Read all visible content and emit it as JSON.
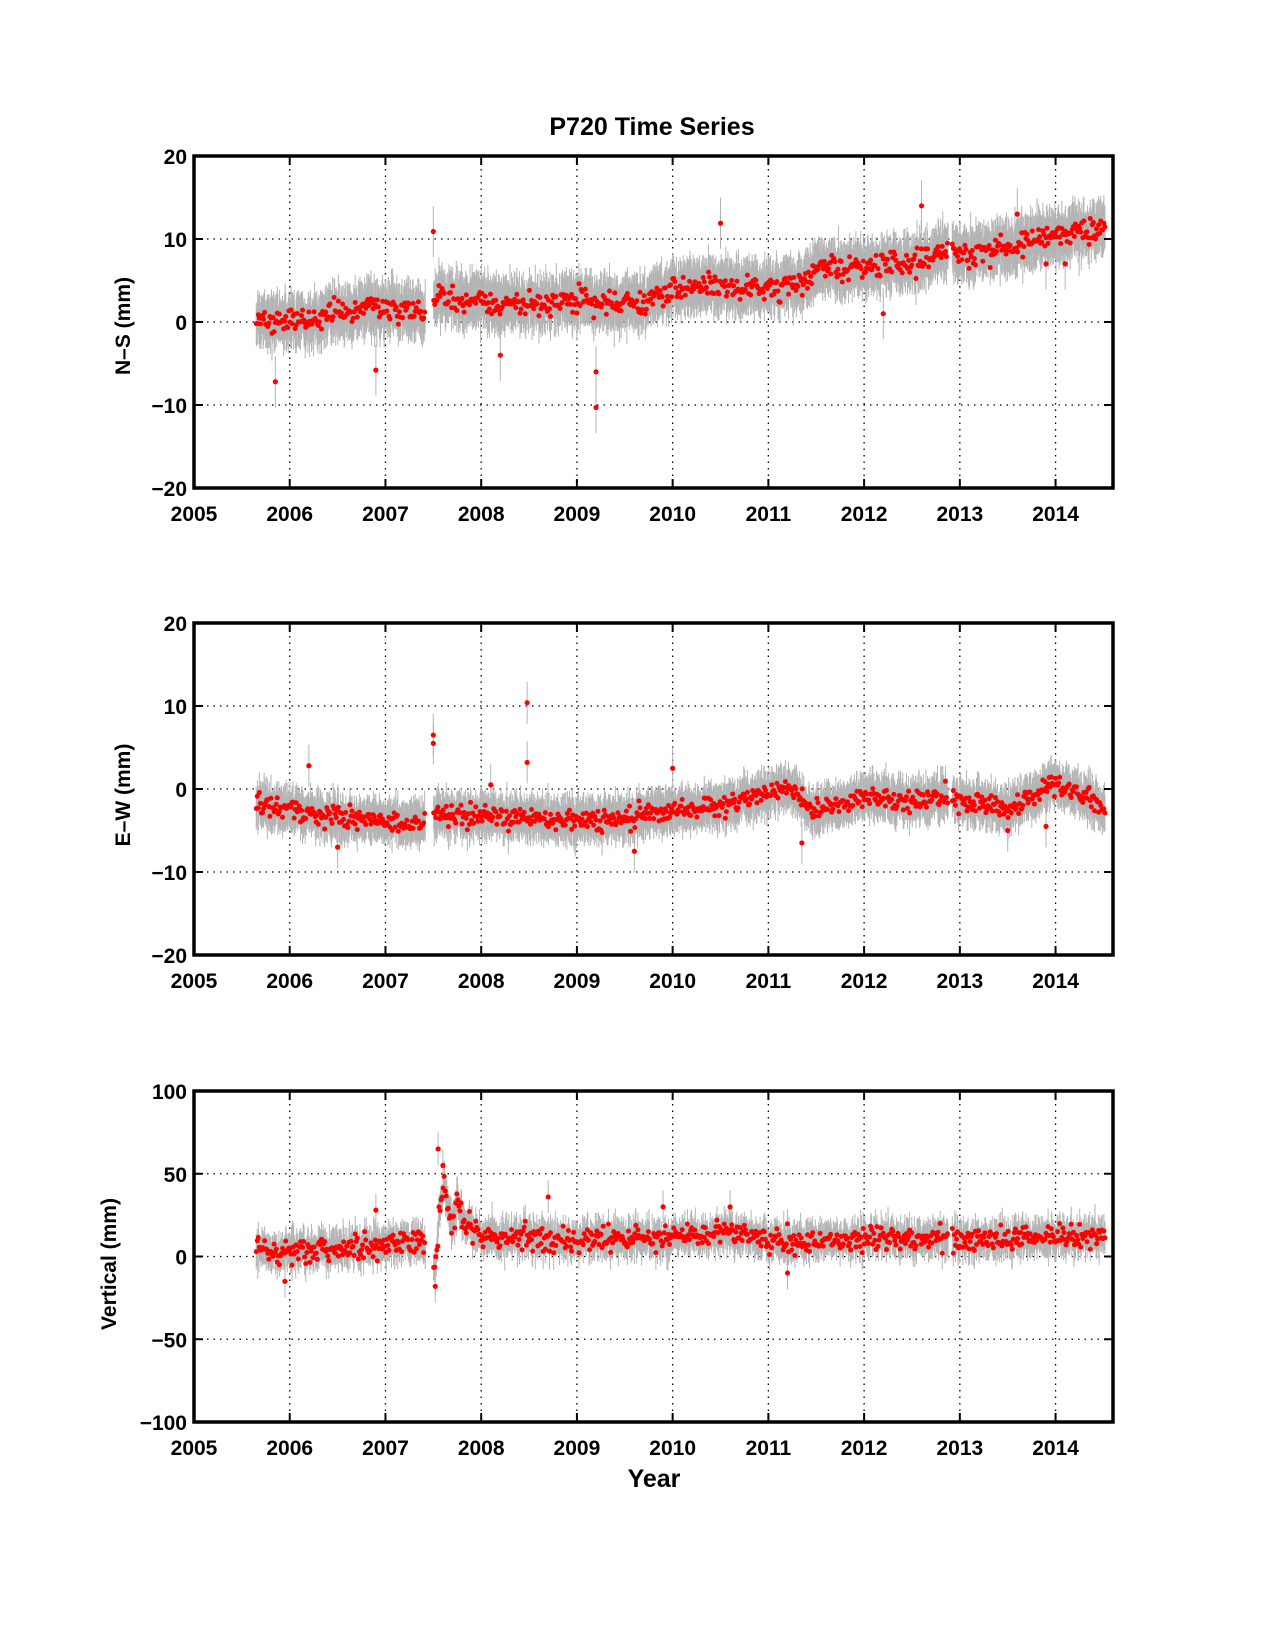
{
  "figure": {
    "title": "P720 Time Series",
    "xlabel": "Year"
  },
  "colors": {
    "point": "#ff0000",
    "error_bar": "#b4b4b4",
    "axes": "#000000",
    "grid": "#000000",
    "background": "#ffffff"
  },
  "chart_data": [
    {
      "type": "scatter",
      "panel": "north-south",
      "title": "P720 Time Series",
      "xlabel": "",
      "ylabel": "N–S (mm)",
      "xlim": [
        2005,
        2014.6
      ],
      "ylim": [
        -20,
        20
      ],
      "xticks": [
        2005,
        2006,
        2007,
        2008,
        2009,
        2010,
        2011,
        2012,
        2013,
        2014
      ],
      "xtick_labels": [
        "2005",
        "2006",
        "2007",
        "2008",
        "2009",
        "2010",
        "2011",
        "2012",
        "2013",
        "2014"
      ],
      "yticks": [
        -20,
        -10,
        0,
        10,
        20
      ],
      "ytick_labels": [
        "−20",
        "−10",
        "0",
        "10",
        "20"
      ],
      "grid": true,
      "error_bars": true,
      "data_span": [
        2005.65,
        2014.52
      ],
      "gaps": [
        [
          2007.42,
          2007.5
        ],
        [
          2012.88,
          2012.92
        ]
      ],
      "trend": [
        [
          2005.65,
          0.0
        ],
        [
          2006.0,
          0.2
        ],
        [
          2006.5,
          1.0
        ],
        [
          2007.0,
          1.7
        ],
        [
          2007.4,
          1.0
        ],
        [
          2007.55,
          3.0
        ],
        [
          2008.0,
          2.5
        ],
        [
          2008.5,
          2.0
        ],
        [
          2009.0,
          2.8
        ],
        [
          2009.4,
          2.0
        ],
        [
          2009.7,
          2.5
        ],
        [
          2010.0,
          4.0
        ],
        [
          2010.5,
          4.5
        ],
        [
          2011.0,
          4.0
        ],
        [
          2011.3,
          4.2
        ],
        [
          2011.5,
          6.5
        ],
        [
          2012.0,
          6.5
        ],
        [
          2012.5,
          7.5
        ],
        [
          2012.85,
          8.5
        ],
        [
          2013.0,
          8.0
        ],
        [
          2013.5,
          9.0
        ],
        [
          2014.0,
          10.5
        ],
        [
          2014.52,
          11.5
        ]
      ],
      "noise": 1.0,
      "error_size": 2.8,
      "outliers": [
        [
          2005.85,
          -7.2
        ],
        [
          2006.9,
          -5.8
        ],
        [
          2007.5,
          10.9
        ],
        [
          2008.2,
          -4.0
        ],
        [
          2009.2,
          -10.3
        ],
        [
          2009.2,
          -6.0
        ],
        [
          2010.5,
          11.9
        ],
        [
          2012.2,
          1.0
        ],
        [
          2012.6,
          14.0
        ],
        [
          2013.6,
          13.0
        ],
        [
          2013.9,
          7.0
        ],
        [
          2014.1,
          7.0
        ]
      ]
    },
    {
      "type": "scatter",
      "panel": "east-west",
      "title": "",
      "xlabel": "",
      "ylabel": "E–W (mm)",
      "xlim": [
        2005,
        2014.6
      ],
      "ylim": [
        -20,
        20
      ],
      "xticks": [
        2005,
        2006,
        2007,
        2008,
        2009,
        2010,
        2011,
        2012,
        2013,
        2014
      ],
      "xtick_labels": [
        "2005",
        "2006",
        "2007",
        "2008",
        "2009",
        "2010",
        "2011",
        "2012",
        "2013",
        "2014"
      ],
      "yticks": [
        -20,
        -10,
        0,
        10,
        20
      ],
      "ytick_labels": [
        "−20",
        "−10",
        "0",
        "10",
        "20"
      ],
      "grid": true,
      "error_bars": true,
      "data_span": [
        2005.65,
        2014.52
      ],
      "gaps": [
        [
          2007.42,
          2007.5
        ],
        [
          2012.88,
          2012.92
        ]
      ],
      "trend": [
        [
          2005.65,
          -2.0
        ],
        [
          2006.0,
          -2.5
        ],
        [
          2006.5,
          -3.5
        ],
        [
          2007.0,
          -3.8
        ],
        [
          2007.4,
          -4.2
        ],
        [
          2007.55,
          -3.0
        ],
        [
          2008.0,
          -3.2
        ],
        [
          2008.5,
          -3.5
        ],
        [
          2009.0,
          -3.8
        ],
        [
          2009.5,
          -3.5
        ],
        [
          2010.0,
          -2.5
        ],
        [
          2010.5,
          -2.0
        ],
        [
          2010.9,
          -1.0
        ],
        [
          2011.1,
          0.0
        ],
        [
          2011.3,
          -0.5
        ],
        [
          2011.45,
          -2.5
        ],
        [
          2011.7,
          -2.0
        ],
        [
          2012.0,
          -0.8
        ],
        [
          2012.5,
          -1.5
        ],
        [
          2012.85,
          -1.0
        ],
        [
          2013.0,
          -1.5
        ],
        [
          2013.5,
          -2.5
        ],
        [
          2013.75,
          -1.0
        ],
        [
          2014.0,
          0.8
        ],
        [
          2014.25,
          -0.5
        ],
        [
          2014.52,
          -2.5
        ]
      ],
      "noise": 0.85,
      "error_size": 2.3,
      "outliers": [
        [
          2006.2,
          2.8
        ],
        [
          2006.5,
          -7.0
        ],
        [
          2007.5,
          6.5
        ],
        [
          2007.5,
          5.5
        ],
        [
          2008.1,
          0.5
        ],
        [
          2008.48,
          10.4
        ],
        [
          2008.48,
          3.2
        ],
        [
          2009.6,
          -7.5
        ],
        [
          2010.0,
          2.5
        ],
        [
          2011.35,
          -6.5
        ],
        [
          2013.5,
          -5.0
        ],
        [
          2013.9,
          -4.5
        ]
      ]
    },
    {
      "type": "scatter",
      "panel": "vertical",
      "title": "",
      "xlabel": "Year",
      "ylabel": "Vertical (mm)",
      "xlim": [
        2005,
        2014.6
      ],
      "ylim": [
        -100,
        100
      ],
      "xticks": [
        2005,
        2006,
        2007,
        2008,
        2009,
        2010,
        2011,
        2012,
        2013,
        2014
      ],
      "xtick_labels": [
        "2005",
        "2006",
        "2007",
        "2008",
        "2009",
        "2010",
        "2011",
        "2012",
        "2013",
        "2014"
      ],
      "yticks": [
        -100,
        -50,
        0,
        50,
        100
      ],
      "ytick_labels": [
        "−100",
        "−50",
        "0",
        "50",
        "100"
      ],
      "grid": true,
      "error_bars": true,
      "data_span": [
        2005.65,
        2014.52
      ],
      "gaps": [
        [
          2007.42,
          2007.5
        ],
        [
          2012.88,
          2012.92
        ]
      ],
      "trend": [
        [
          2005.65,
          3.0
        ],
        [
          2006.0,
          3.0
        ],
        [
          2006.5,
          5.0
        ],
        [
          2007.0,
          7.0
        ],
        [
          2007.4,
          8.0
        ],
        [
          2007.52,
          -10.0
        ],
        [
          2007.56,
          25.0
        ],
        [
          2007.62,
          45.0
        ],
        [
          2007.68,
          20.0
        ],
        [
          2007.75,
          30.0
        ],
        [
          2007.85,
          20.0
        ],
        [
          2008.0,
          12.0
        ],
        [
          2008.5,
          11.0
        ],
        [
          2009.0,
          10.0
        ],
        [
          2009.5,
          11.0
        ],
        [
          2010.0,
          11.0
        ],
        [
          2010.5,
          14.0
        ],
        [
          2011.0,
          10.0
        ],
        [
          2011.5,
          10.0
        ],
        [
          2012.0,
          11.0
        ],
        [
          2012.5,
          11.0
        ],
        [
          2012.85,
          11.0
        ],
        [
          2013.0,
          10.0
        ],
        [
          2013.5,
          11.0
        ],
        [
          2014.0,
          12.0
        ],
        [
          2014.52,
          13.0
        ]
      ],
      "noise": 5.0,
      "error_size": 9.0,
      "outliers": [
        [
          2005.95,
          -15.0
        ],
        [
          2006.9,
          28.0
        ],
        [
          2007.55,
          65.0
        ],
        [
          2007.6,
          55.0
        ],
        [
          2007.52,
          -18.0
        ],
        [
          2008.7,
          36.0
        ],
        [
          2009.9,
          30.0
        ],
        [
          2010.6,
          30.0
        ],
        [
          2011.2,
          -10.0
        ]
      ]
    }
  ]
}
